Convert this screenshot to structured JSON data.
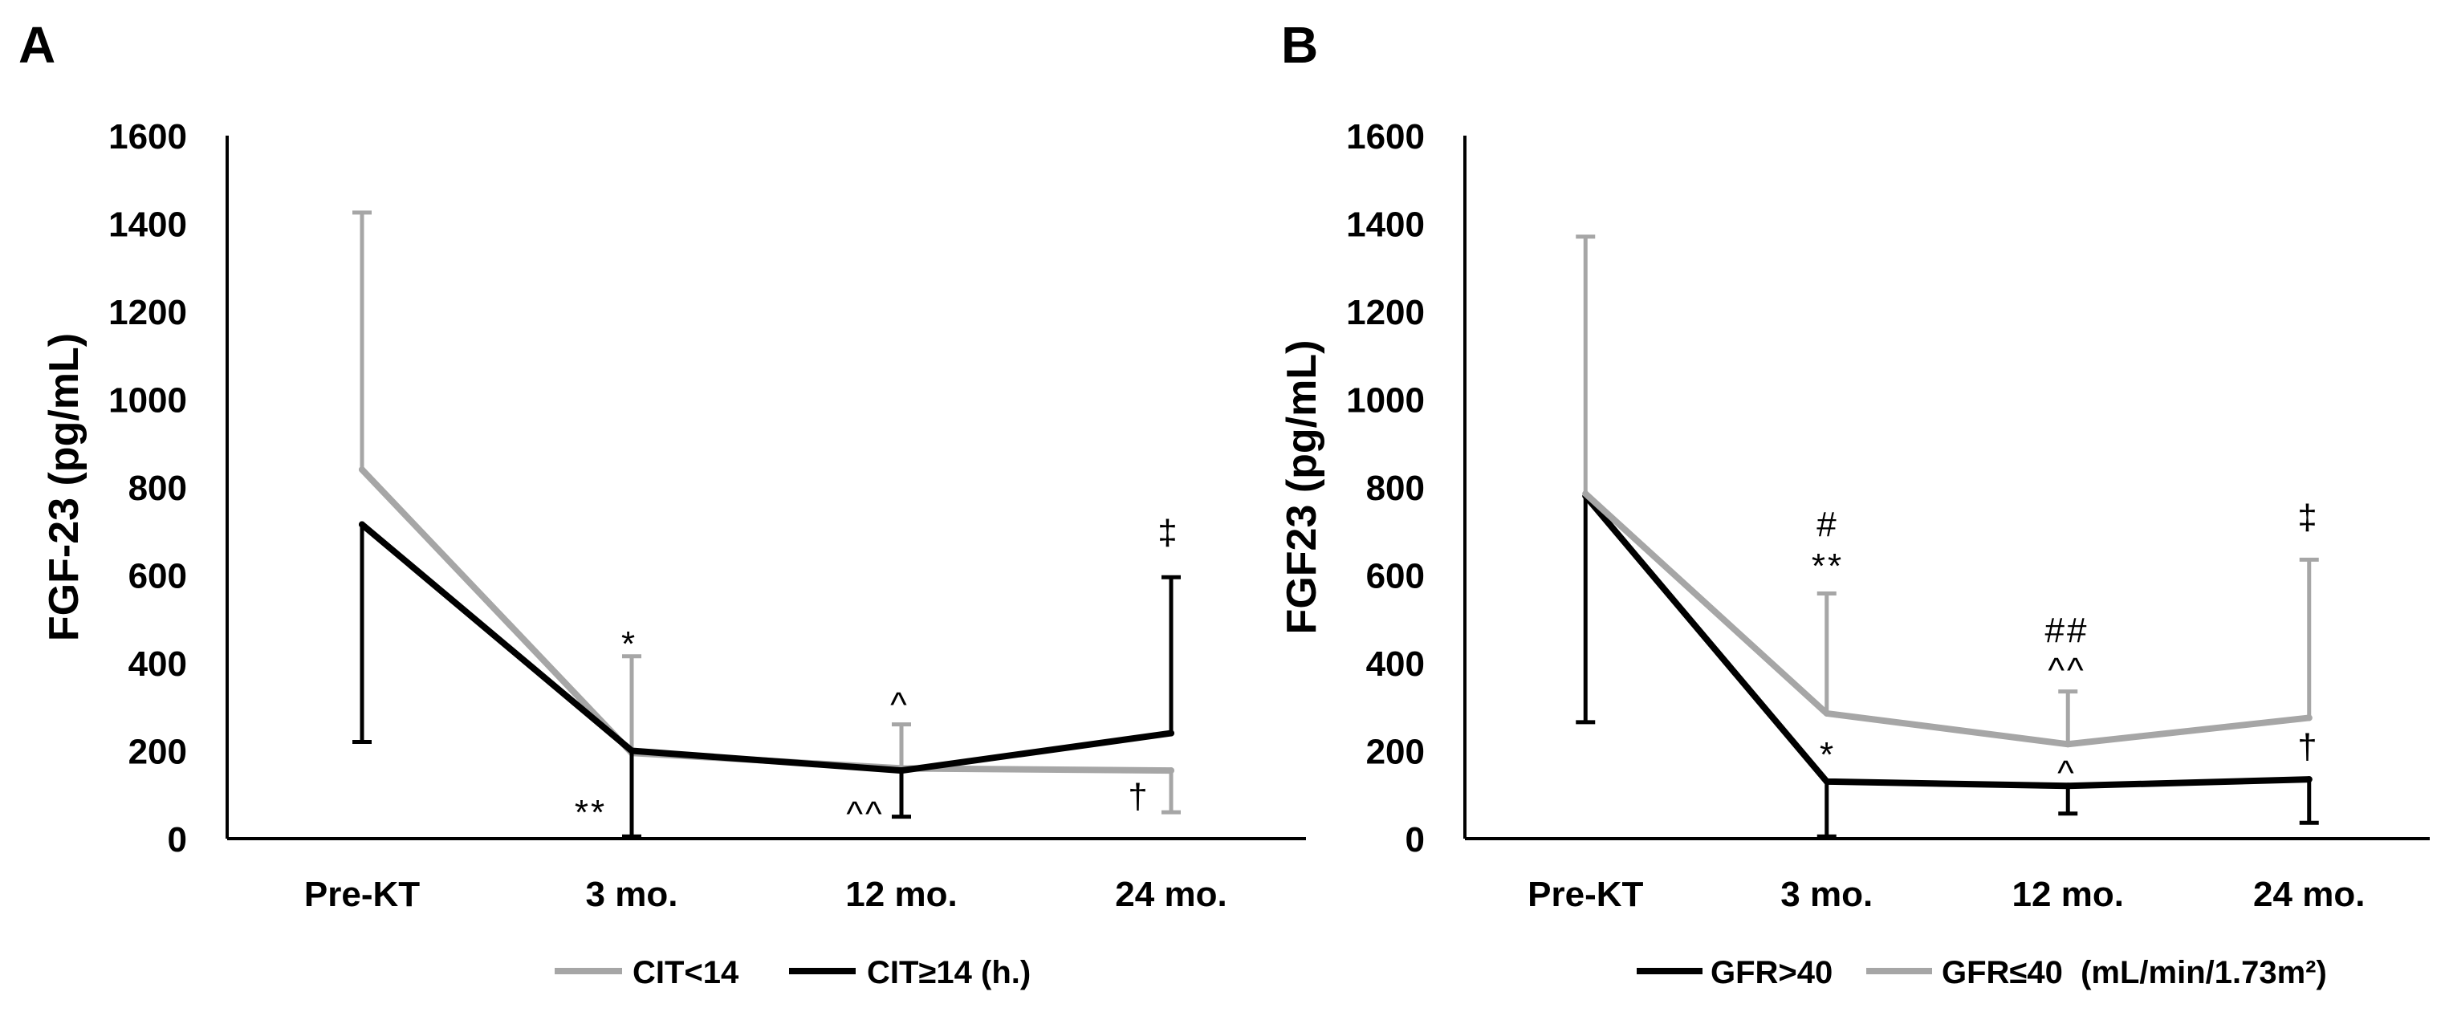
{
  "chart_data": [
    {
      "panel_label": "A",
      "type": "line",
      "title": "",
      "xlabel": "",
      "ylabel": "FGF-23 (pg/mL)",
      "categories": [
        "Pre-KT",
        "3 mo.",
        "12 mo.",
        "24 mo."
      ],
      "ylim": [
        0,
        1600
      ],
      "yticks": [
        0,
        200,
        400,
        600,
        800,
        1000,
        1200,
        1400,
        1600
      ],
      "grid": false,
      "legend_position": "bottom",
      "series": [
        {
          "name": "CIT<14",
          "color": "#a6a6a6",
          "values": [
            840,
            195,
            160,
            155
          ],
          "error_bar_to": [
            1425,
            415,
            260,
            60
          ]
        },
        {
          "name": "CIT≥14 (h.)",
          "color": "#000000",
          "values": [
            715,
            200,
            155,
            240
          ],
          "error_bar_to": [
            220,
            5,
            50,
            595
          ]
        }
      ],
      "annotations": [
        {
          "category_index": 1,
          "series_index": 0,
          "text": "*"
        },
        {
          "category_index": 1,
          "series_index": 1,
          "text": "**"
        },
        {
          "category_index": 2,
          "series_index": 0,
          "text": "^"
        },
        {
          "category_index": 2,
          "series_index": 1,
          "text": "^^"
        },
        {
          "category_index": 3,
          "series_index": 1,
          "text": "‡"
        },
        {
          "category_index": 3,
          "series_index": 0,
          "text": "†"
        }
      ]
    },
    {
      "panel_label": "B",
      "type": "line",
      "title": "",
      "xlabel": "",
      "ylabel": "FGF23 (pg/mL)",
      "categories": [
        "Pre-KT",
        "3 mo.",
        "12 mo.",
        "24 mo."
      ],
      "ylim": [
        0,
        1600
      ],
      "yticks": [
        0,
        200,
        400,
        600,
        800,
        1000,
        1200,
        1400,
        1600
      ],
      "grid": false,
      "legend_position": "bottom",
      "series": [
        {
          "name": "GFR>40",
          "color": "#000000",
          "values": [
            780,
            130,
            120,
            135
          ],
          "error_bar_to": [
            265,
            5,
            57,
            36
          ]
        },
        {
          "name": "GFR≤40  (mL/min/1.73m²)",
          "color": "#a6a6a6",
          "values": [
            785,
            285,
            215,
            275
          ],
          "error_bar_to": [
            1370,
            558,
            335,
            635
          ]
        }
      ],
      "annotations": [
        {
          "category_index": 1,
          "series_index": 1,
          "text": "#"
        },
        {
          "category_index": 1,
          "series_index": 1,
          "text": "**"
        },
        {
          "category_index": 2,
          "series_index": 1,
          "text": "##"
        },
        {
          "category_index": 2,
          "series_index": 1,
          "text": "^^"
        },
        {
          "category_index": 3,
          "series_index": 1,
          "text": "‡"
        },
        {
          "category_index": 1,
          "series_index": 0,
          "text": "*"
        },
        {
          "category_index": 2,
          "series_index": 0,
          "text": "^"
        },
        {
          "category_index": 3,
          "series_index": 0,
          "text": "†"
        }
      ]
    }
  ]
}
